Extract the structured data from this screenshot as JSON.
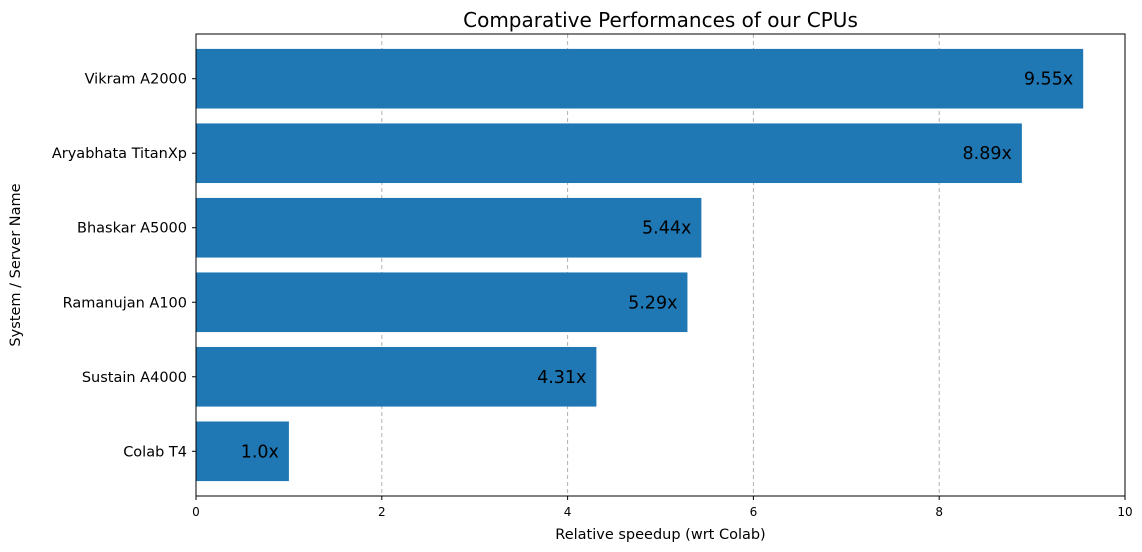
{
  "chart_data": {
    "type": "bar",
    "orientation": "horizontal",
    "title": "Comparative Performances of our CPUs",
    "xlabel": "Relative speedup  (wrt Colab)",
    "ylabel": "System / Server Name",
    "categories": [
      "Colab T4",
      "Sustain A4000",
      "Ramanujan A100",
      "Bhaskar A5000",
      "Aryabhata TitanXp",
      "Vikram A2000"
    ],
    "values": [
      1.0,
      4.31,
      5.29,
      5.44,
      8.89,
      9.55
    ],
    "data_labels": [
      "1.0x",
      "4.31x",
      "5.29x",
      "5.44x",
      "8.89x",
      "9.55x"
    ],
    "xlim": [
      0,
      10
    ],
    "xticks": [
      0,
      2,
      4,
      6,
      8,
      10
    ],
    "xtick_labels": [
      "0",
      "2",
      "4",
      "6",
      "8",
      "10"
    ],
    "grid": "x-axis dashed",
    "bar_color": "#1f77b4",
    "grid_color": "#b0b0b0"
  }
}
